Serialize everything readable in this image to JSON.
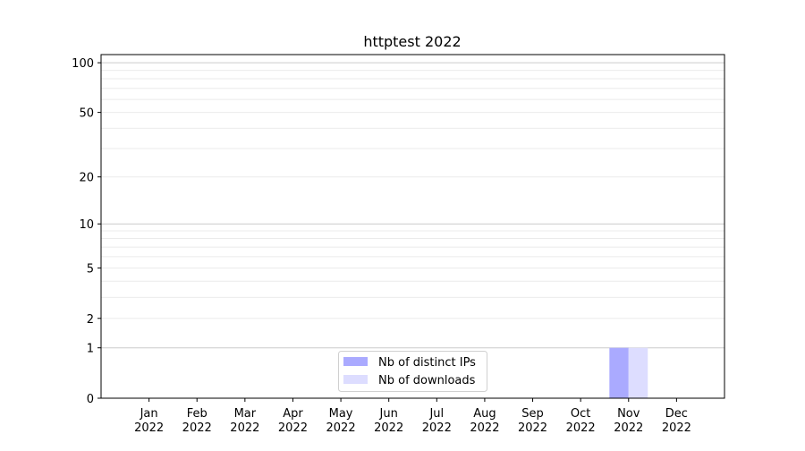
{
  "chart_data": {
    "type": "bar",
    "title": "httptest 2022",
    "xlabel": "",
    "ylabel": "",
    "y_scale": "log(1+y)",
    "ylim": [
      0,
      112
    ],
    "yticks": [
      0,
      1,
      2,
      5,
      10,
      20,
      50,
      100
    ],
    "ytick_labels": [
      "0",
      "1",
      "2",
      "5",
      "10",
      "20",
      "50",
      "100"
    ],
    "grid": "horizontal major and minor",
    "categories": [
      [
        "Jan",
        "2022"
      ],
      [
        "Feb",
        "2022"
      ],
      [
        "Mar",
        "2022"
      ],
      [
        "Apr",
        "2022"
      ],
      [
        "May",
        "2022"
      ],
      [
        "Jun",
        "2022"
      ],
      [
        "Jul",
        "2022"
      ],
      [
        "Aug",
        "2022"
      ],
      [
        "Sep",
        "2022"
      ],
      [
        "Oct",
        "2022"
      ],
      [
        "Nov",
        "2022"
      ],
      [
        "Dec",
        "2022"
      ]
    ],
    "series": [
      {
        "name": "Nb of distinct IPs",
        "color": "#aaaaff",
        "values": [
          0,
          0,
          0,
          0,
          0,
          0,
          0,
          0,
          0,
          0,
          1,
          0
        ]
      },
      {
        "name": "Nb of downloads",
        "color": "#ddddff",
        "values": [
          0,
          0,
          0,
          0,
          0,
          0,
          0,
          0,
          0,
          0,
          1,
          0
        ]
      }
    ],
    "legend_position": "bottom-center"
  }
}
